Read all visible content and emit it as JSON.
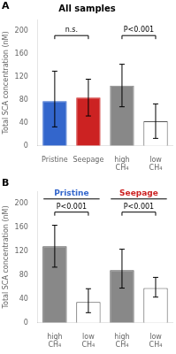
{
  "chart_data": [
    {
      "type": "bar",
      "title": "All samples",
      "categories": [
        "Pristine",
        "Seepage",
        "high\nCH₄",
        "low\nCH₄"
      ],
      "values": [
        78,
        84,
        105,
        43
      ],
      "errors_up": [
        52,
        32,
        37,
        30
      ],
      "errors_dn": [
        45,
        32,
        37,
        30
      ],
      "colors": [
        "#3366cc",
        "#cc2222",
        "#888888",
        "#ffffff"
      ],
      "edge_colors": [
        "#3366cc",
        "#cc2222",
        "#888888",
        "#555555"
      ],
      "ylabel": "Total SCA concentration (nM)",
      "ylim": [
        0,
        220
      ],
      "yticks": [
        0,
        40,
        80,
        120,
        160,
        200
      ],
      "grid": false,
      "annotations": [
        {
          "text": "A"
        },
        {
          "text": "n.s.",
          "shape": "bracket",
          "x": [
            0,
            1
          ],
          "y": 192
        },
        {
          "text": "P<0.001",
          "shape": "bracket",
          "x": [
            2,
            3
          ],
          "y": 192
        }
      ]
    },
    {
      "type": "bar",
      "categories": [
        "high\nCH₄",
        "low\nCH₄",
        "high\nCH₄",
        "low\nCH₄"
      ],
      "values": [
        128,
        35,
        88,
        58
      ],
      "errors_up": [
        35,
        22,
        35,
        18
      ],
      "errors_dn": [
        35,
        18,
        30,
        15
      ],
      "colors": [
        "#888888",
        "#ffffff",
        "#888888",
        "#ffffff"
      ],
      "edge_colors": [
        "#555555",
        "#555555",
        "#555555",
        "#555555"
      ],
      "ylabel": "Total SCA concentration (nM)",
      "ylim": [
        0,
        220
      ],
      "yticks": [
        0,
        40,
        80,
        120,
        160,
        200
      ],
      "grid": false,
      "annotations": [
        {
          "text": "B"
        },
        {
          "text": "Pristine",
          "shape": "line",
          "x": [
            0,
            1
          ],
          "y": 207,
          "color": "#3366cc"
        },
        {
          "text": "Seepage",
          "shape": "line",
          "x": [
            2,
            3
          ],
          "y": 207,
          "color": "#cc2222"
        },
        {
          "text": "P<0.001",
          "shape": "bracket",
          "x": [
            0,
            1
          ],
          "y": 185
        },
        {
          "text": "P<0.001",
          "shape": "bracket",
          "x": [
            2,
            3
          ],
          "y": 185
        }
      ]
    }
  ]
}
